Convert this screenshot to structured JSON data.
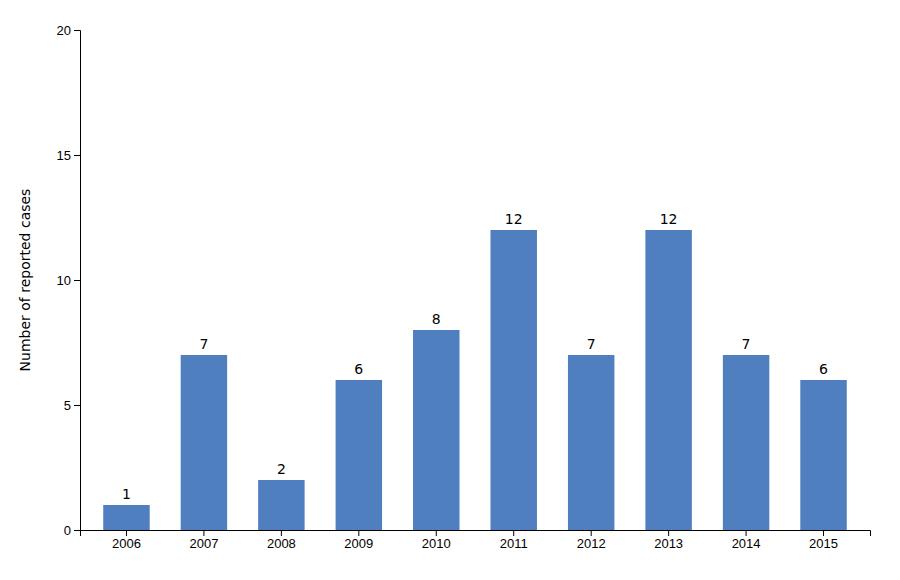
{
  "chart_data": {
    "type": "bar",
    "categories": [
      "2006",
      "2007",
      "2008",
      "2009",
      "2010",
      "2011",
      "2012",
      "2013",
      "2014",
      "2015"
    ],
    "values": [
      1,
      7,
      2,
      6,
      8,
      12,
      7,
      12,
      7,
      6
    ],
    "color": "#4f7fbf",
    "ylabel": "Number of reported cases",
    "ylim": [
      0,
      20
    ],
    "yticks": [
      0,
      5,
      10,
      15,
      20
    ],
    "data_labels": true,
    "grid": false
  }
}
